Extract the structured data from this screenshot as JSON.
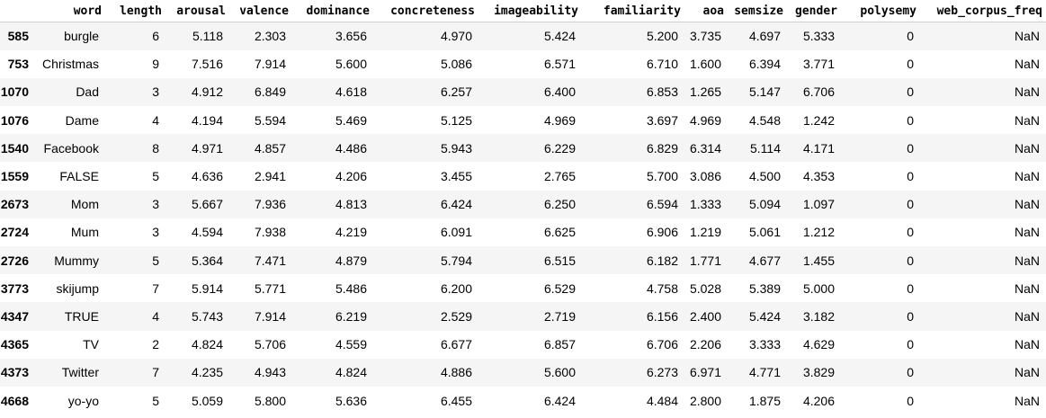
{
  "table": {
    "columns": [
      "",
      "word",
      "length",
      "arousal",
      "valence",
      "dominance",
      "concreteness",
      "imageability",
      "familiarity",
      "aoa",
      "semsize",
      "gender",
      "polysemy",
      "web_corpus_freq"
    ],
    "rows": [
      {
        "index": "585",
        "cells": [
          "burgle",
          "6",
          "5.118",
          "2.303",
          "3.656",
          "4.970",
          "5.424",
          "5.200",
          "3.735",
          "4.697",
          "5.333",
          "0",
          "NaN"
        ]
      },
      {
        "index": "753",
        "cells": [
          "Christmas",
          "9",
          "7.516",
          "7.914",
          "5.600",
          "5.086",
          "6.571",
          "6.710",
          "1.600",
          "6.394",
          "3.771",
          "0",
          "NaN"
        ]
      },
      {
        "index": "1070",
        "cells": [
          "Dad",
          "3",
          "4.912",
          "6.849",
          "4.618",
          "6.257",
          "6.400",
          "6.853",
          "1.265",
          "5.147",
          "6.706",
          "0",
          "NaN"
        ]
      },
      {
        "index": "1076",
        "cells": [
          "Dame",
          "4",
          "4.194",
          "5.594",
          "5.469",
          "5.125",
          "4.969",
          "3.697",
          "4.969",
          "4.548",
          "1.242",
          "0",
          "NaN"
        ]
      },
      {
        "index": "1540",
        "cells": [
          "Facebook",
          "8",
          "4.971",
          "4.857",
          "4.486",
          "5.943",
          "6.229",
          "6.829",
          "6.314",
          "5.114",
          "4.171",
          "0",
          "NaN"
        ]
      },
      {
        "index": "1559",
        "cells": [
          "FALSE",
          "5",
          "4.636",
          "2.941",
          "4.206",
          "3.455",
          "2.765",
          "5.700",
          "3.086",
          "4.500",
          "4.353",
          "0",
          "NaN"
        ]
      },
      {
        "index": "2673",
        "cells": [
          "Mom",
          "3",
          "5.667",
          "7.936",
          "4.813",
          "6.424",
          "6.250",
          "6.594",
          "1.333",
          "5.094",
          "1.097",
          "0",
          "NaN"
        ]
      },
      {
        "index": "2724",
        "cells": [
          "Mum",
          "3",
          "4.594",
          "7.938",
          "4.219",
          "6.091",
          "6.625",
          "6.906",
          "1.219",
          "5.061",
          "1.212",
          "0",
          "NaN"
        ]
      },
      {
        "index": "2726",
        "cells": [
          "Mummy",
          "5",
          "5.364",
          "7.471",
          "4.879",
          "5.794",
          "6.515",
          "6.182",
          "1.771",
          "4.677",
          "1.455",
          "0",
          "NaN"
        ]
      },
      {
        "index": "3773",
        "cells": [
          "skijump",
          "7",
          "5.914",
          "5.771",
          "5.486",
          "6.200",
          "6.529",
          "4.758",
          "5.028",
          "5.389",
          "5.000",
          "0",
          "NaN"
        ]
      },
      {
        "index": "4347",
        "cells": [
          "TRUE",
          "4",
          "5.743",
          "7.914",
          "6.219",
          "2.529",
          "2.719",
          "6.156",
          "2.400",
          "5.424",
          "3.182",
          "0",
          "NaN"
        ]
      },
      {
        "index": "4365",
        "cells": [
          "TV",
          "2",
          "4.824",
          "5.706",
          "4.559",
          "6.677",
          "6.857",
          "6.706",
          "2.206",
          "3.333",
          "4.629",
          "0",
          "NaN"
        ]
      },
      {
        "index": "4373",
        "cells": [
          "Twitter",
          "7",
          "4.235",
          "4.943",
          "4.824",
          "4.886",
          "5.600",
          "6.273",
          "6.971",
          "4.771",
          "3.829",
          "0",
          "NaN"
        ]
      },
      {
        "index": "4668",
        "cells": [
          "yo-yo",
          "5",
          "5.059",
          "5.800",
          "5.636",
          "6.455",
          "6.424",
          "4.484",
          "2.800",
          "1.875",
          "4.206",
          "0",
          "NaN"
        ]
      }
    ]
  }
}
